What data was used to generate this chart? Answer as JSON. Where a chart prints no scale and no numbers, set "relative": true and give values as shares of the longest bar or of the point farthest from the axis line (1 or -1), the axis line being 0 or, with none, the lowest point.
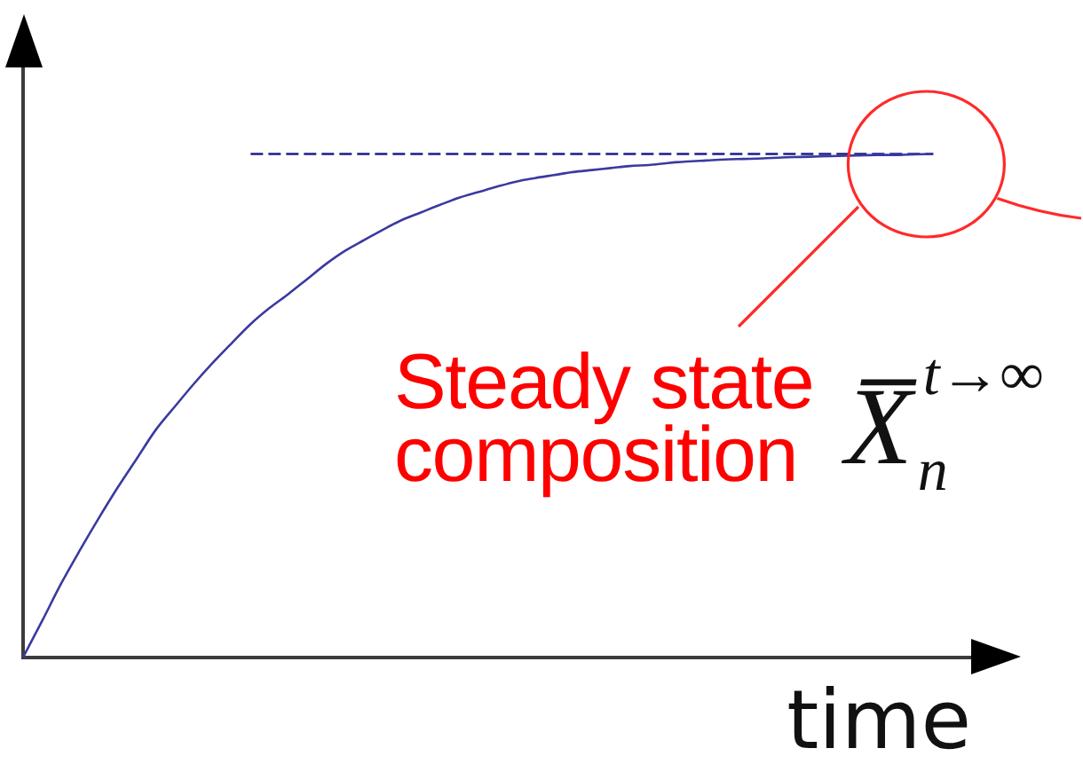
{
  "chart_data": {
    "type": "line",
    "xlabel": "time",
    "relative": true,
    "categories": [
      null,
      null,
      null,
      null,
      null,
      null,
      null,
      null,
      null,
      null,
      null,
      null,
      null,
      null,
      null,
      null,
      null,
      null,
      null,
      null,
      null,
      null,
      null,
      null,
      null,
      null,
      null,
      null,
      null,
      null,
      null,
      null,
      null,
      null,
      null,
      null,
      null,
      null,
      null,
      null,
      null,
      null,
      null,
      null,
      null,
      null,
      null,
      null,
      null,
      null,
      null
    ],
    "series": [
      {
        "color": "#3a3aa0",
        "values": [
          0,
          0.072,
          0.146,
          0.213,
          0.277,
          0.338,
          0.395,
          0.452,
          0.498,
          0.543,
          0.585,
          0.624,
          0.662,
          0.694,
          0.722,
          0.752,
          0.782,
          0.808,
          0.829,
          0.85,
          0.869,
          0.884,
          0.899,
          0.913,
          0.924,
          0.935,
          0.945,
          0.952,
          0.958,
          0.964,
          0.968,
          0.972,
          0.976,
          0.978,
          0.982,
          0.985,
          0.987,
          0.989,
          0.99,
          0.991,
          0.993,
          0.994,
          0.995,
          0.996,
          0.997,
          0.998,
          0.998,
          0.999,
          1,
          null,
          null
        ]
      },
      {
        "color": "#1c1c8a",
        "line_style": "dashed",
        "values": [
          null,
          null,
          null,
          null,
          null,
          null,
          null,
          null,
          null,
          null,
          null,
          null,
          1,
          1,
          1,
          1,
          1,
          1,
          1,
          1,
          1,
          1,
          1,
          1,
          1,
          1,
          1,
          1,
          1,
          1,
          1,
          1,
          1,
          1,
          1,
          1,
          1,
          1,
          1,
          1,
          1,
          1,
          1,
          1,
          1,
          1,
          1,
          1,
          1,
          null,
          null
        ]
      }
    ],
    "annotations": [
      "Steady state composition",
      "X̅$_{n}$$^{t→∞}$"
    ]
  }
}
